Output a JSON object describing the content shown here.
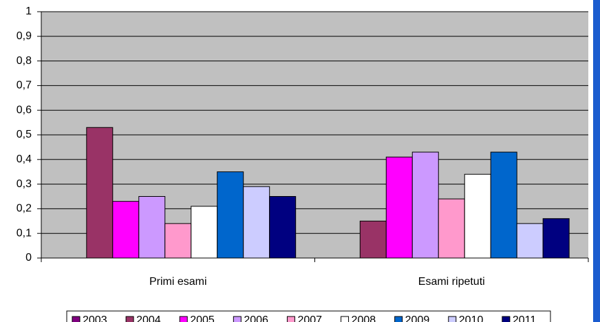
{
  "chart_data": {
    "type": "bar",
    "categories": [
      "Primi esami",
      "Esami ripetuti"
    ],
    "series": [
      {
        "name": "2003",
        "color": "#800080",
        "values": [
          null,
          null
        ]
      },
      {
        "name": "2004",
        "color": "#993366",
        "values": [
          0.53,
          0.15
        ]
      },
      {
        "name": "2005",
        "color": "#ff00ff",
        "values": [
          0.23,
          0.41
        ]
      },
      {
        "name": "2006",
        "color": "#cc99ff",
        "values": [
          0.25,
          0.43
        ]
      },
      {
        "name": "2007",
        "color": "#ff99cc",
        "values": [
          0.14,
          0.24
        ]
      },
      {
        "name": "2008",
        "color": "#ffffff",
        "values": [
          0.21,
          0.34
        ]
      },
      {
        "name": "2009",
        "color": "#0066cc",
        "values": [
          0.35,
          0.43
        ]
      },
      {
        "name": "2010",
        "color": "#ccccff",
        "values": [
          0.29,
          0.14
        ]
      },
      {
        "name": "2011",
        "color": "#000080",
        "values": [
          0.25,
          0.16
        ]
      }
    ],
    "ylim": [
      0,
      1
    ],
    "yticks": [
      0,
      {
        "value": 0.1,
        "label": "0,1"
      },
      {
        "value": 0.2,
        "label": "0,2"
      },
      {
        "value": 0.3,
        "label": "0,3"
      },
      {
        "value": 0.4,
        "label": "0,4"
      },
      {
        "value": 0.5,
        "label": "0,5"
      },
      {
        "value": 0.6,
        "label": "0,6"
      },
      {
        "value": 0.7,
        "label": "0,7"
      },
      {
        "value": 0.8,
        "label": "0,8"
      },
      {
        "value": 0.9,
        "label": "0,9"
      },
      1
    ],
    "grid": true,
    "legend": "bottom"
  }
}
